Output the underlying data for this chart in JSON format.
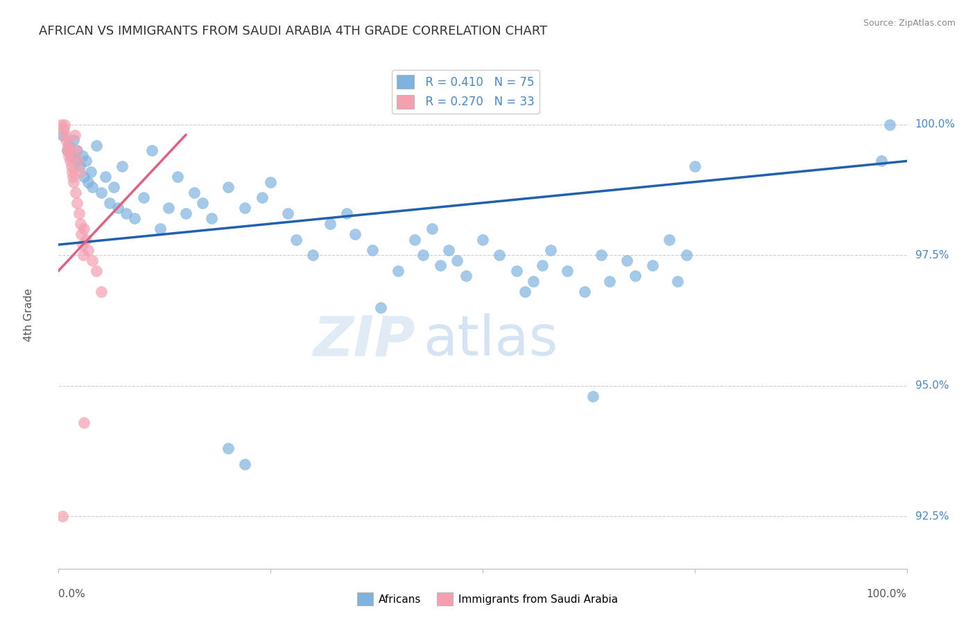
{
  "title": "AFRICAN VS IMMIGRANTS FROM SAUDI ARABIA 4TH GRADE CORRELATION CHART",
  "source": "Source: ZipAtlas.com",
  "ylabel": "4th Grade",
  "ytick_values": [
    92.5,
    95.0,
    97.5,
    100.0
  ],
  "xlim": [
    0.0,
    100.0
  ],
  "ylim": [
    91.5,
    101.2
  ],
  "legend_blue_r": "R = 0.410",
  "legend_blue_n": "N = 75",
  "legend_pink_r": "R = 0.270",
  "legend_pink_n": "N = 33",
  "legend_blue_label": "Africans",
  "legend_pink_label": "Immigrants from Saudi Arabia",
  "blue_color": "#7EB3E0",
  "pink_color": "#F4A0B0",
  "blue_line_color": "#2060B0",
  "pink_line_color": "#E06080",
  "watermark_zip": "ZIP",
  "watermark_atlas": "atlas",
  "blue_dots": [
    [
      0.5,
      99.8
    ],
    [
      1.0,
      99.5
    ],
    [
      1.2,
      99.6
    ],
    [
      1.5,
      99.4
    ],
    [
      1.8,
      99.7
    ],
    [
      2.0,
      99.3
    ],
    [
      2.2,
      99.5
    ],
    [
      2.5,
      99.2
    ],
    [
      2.8,
      99.4
    ],
    [
      3.0,
      99.0
    ],
    [
      3.2,
      99.3
    ],
    [
      3.5,
      98.9
    ],
    [
      3.8,
      99.1
    ],
    [
      4.0,
      98.8
    ],
    [
      4.5,
      99.6
    ],
    [
      5.0,
      98.7
    ],
    [
      5.5,
      99.0
    ],
    [
      6.0,
      98.5
    ],
    [
      6.5,
      98.8
    ],
    [
      7.0,
      98.4
    ],
    [
      7.5,
      99.2
    ],
    [
      8.0,
      98.3
    ],
    [
      9.0,
      98.2
    ],
    [
      10.0,
      98.6
    ],
    [
      11.0,
      99.5
    ],
    [
      12.0,
      98.0
    ],
    [
      13.0,
      98.4
    ],
    [
      14.0,
      99.0
    ],
    [
      15.0,
      98.3
    ],
    [
      16.0,
      98.7
    ],
    [
      17.0,
      98.5
    ],
    [
      18.0,
      98.2
    ],
    [
      20.0,
      98.8
    ],
    [
      22.0,
      98.4
    ],
    [
      24.0,
      98.6
    ],
    [
      25.0,
      98.9
    ],
    [
      27.0,
      98.3
    ],
    [
      28.0,
      97.8
    ],
    [
      30.0,
      97.5
    ],
    [
      32.0,
      98.1
    ],
    [
      34.0,
      98.3
    ],
    [
      35.0,
      97.9
    ],
    [
      37.0,
      97.6
    ],
    [
      38.0,
      96.5
    ],
    [
      40.0,
      97.2
    ],
    [
      42.0,
      97.8
    ],
    [
      43.0,
      97.5
    ],
    [
      44.0,
      98.0
    ],
    [
      45.0,
      97.3
    ],
    [
      46.0,
      97.6
    ],
    [
      47.0,
      97.4
    ],
    [
      48.0,
      97.1
    ],
    [
      50.0,
      97.8
    ],
    [
      52.0,
      97.5
    ],
    [
      54.0,
      97.2
    ],
    [
      55.0,
      96.8
    ],
    [
      56.0,
      97.0
    ],
    [
      57.0,
      97.3
    ],
    [
      58.0,
      97.6
    ],
    [
      60.0,
      97.2
    ],
    [
      62.0,
      96.8
    ],
    [
      63.0,
      94.8
    ],
    [
      64.0,
      97.5
    ],
    [
      65.0,
      97.0
    ],
    [
      67.0,
      97.4
    ],
    [
      68.0,
      97.1
    ],
    [
      70.0,
      97.3
    ],
    [
      72.0,
      97.8
    ],
    [
      73.0,
      97.0
    ],
    [
      74.0,
      97.5
    ],
    [
      75.0,
      99.2
    ],
    [
      20.0,
      93.8
    ],
    [
      22.0,
      93.5
    ],
    [
      97.0,
      99.3
    ],
    [
      98.0,
      100.0
    ]
  ],
  "pink_dots": [
    [
      0.3,
      100.0
    ],
    [
      0.6,
      99.9
    ],
    [
      0.7,
      100.0
    ],
    [
      0.8,
      99.8
    ],
    [
      0.9,
      99.7
    ],
    [
      1.0,
      99.5
    ],
    [
      1.1,
      99.6
    ],
    [
      1.2,
      99.4
    ],
    [
      1.3,
      99.5
    ],
    [
      1.4,
      99.3
    ],
    [
      1.5,
      99.2
    ],
    [
      1.6,
      99.1
    ],
    [
      1.7,
      99.0
    ],
    [
      1.8,
      98.9
    ],
    [
      1.9,
      99.8
    ],
    [
      2.0,
      98.7
    ],
    [
      2.1,
      99.5
    ],
    [
      2.2,
      98.5
    ],
    [
      2.3,
      99.3
    ],
    [
      2.4,
      98.3
    ],
    [
      2.5,
      99.1
    ],
    [
      2.6,
      98.1
    ],
    [
      2.7,
      97.9
    ],
    [
      2.8,
      97.7
    ],
    [
      2.9,
      97.5
    ],
    [
      3.0,
      98.0
    ],
    [
      3.2,
      97.8
    ],
    [
      3.5,
      97.6
    ],
    [
      4.0,
      97.4
    ],
    [
      4.5,
      97.2
    ],
    [
      5.0,
      96.8
    ],
    [
      0.5,
      92.5
    ],
    [
      3.0,
      94.3
    ]
  ],
  "blue_trendline": [
    0.0,
    97.7,
    100.0,
    99.3
  ],
  "pink_trendline": [
    0.0,
    97.2,
    15.0,
    99.8
  ]
}
